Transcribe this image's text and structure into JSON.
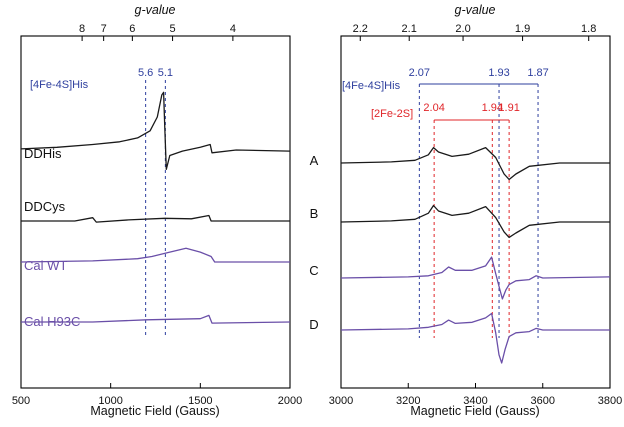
{
  "colors": {
    "black": "#1a1a1a",
    "blue": "#2e3f9e",
    "red": "#e0262a",
    "purple": "#6a4fa8"
  },
  "chart_data": [
    {
      "type": "line",
      "panel": "left",
      "title": "",
      "xlabel": "Magnetic Field (Gauss)",
      "top_axis_label": "g-value",
      "xlim": [
        500,
        2000
      ],
      "xticks": [
        500,
        1000,
        1500,
        2000
      ],
      "g_ticks": [
        {
          "g": 8,
          "label": "8"
        },
        {
          "g": 7,
          "label": "7"
        },
        {
          "g": 6,
          "label": "6"
        },
        {
          "g": 5,
          "label": "5"
        },
        {
          "g": 4,
          "label": "4"
        }
      ],
      "annotation_label": "[4Fe-4S]His",
      "reference_lines": [
        {
          "label": "5.6",
          "field": 1195,
          "color": "blue"
        },
        {
          "label": "5.1",
          "field": 1305,
          "color": "blue"
        }
      ],
      "series": [
        {
          "name": "DDHis",
          "color": "black",
          "baseline": 0.0,
          "points": [
            [
              500,
              -0.02
            ],
            [
              700,
              -0.05
            ],
            [
              900,
              -0.1
            ],
            [
              1050,
              -0.15
            ],
            [
              1150,
              -0.22
            ],
            [
              1220,
              -0.35
            ],
            [
              1260,
              -0.6
            ],
            [
              1285,
              -1.0
            ],
            [
              1295,
              -1.05
            ],
            [
              1302,
              -0.4
            ],
            [
              1310,
              0.35
            ],
            [
              1330,
              0.1
            ],
            [
              1400,
              0.02
            ],
            [
              1500,
              -0.05
            ],
            [
              1555,
              -0.1
            ],
            [
              1565,
              0.05
            ],
            [
              1700,
              0.0
            ],
            [
              2000,
              0.02
            ]
          ]
        },
        {
          "name": "DDCys",
          "color": "black",
          "baseline": 0.0,
          "points": [
            [
              500,
              0.0
            ],
            [
              800,
              0.0
            ],
            [
              900,
              -0.06
            ],
            [
              920,
              0.02
            ],
            [
              1100,
              -0.02
            ],
            [
              1300,
              -0.05
            ],
            [
              1450,
              -0.04
            ],
            [
              1548,
              -0.1
            ],
            [
              1560,
              0.0
            ],
            [
              2000,
              0.0
            ]
          ]
        },
        {
          "name": "Cal WT",
          "color": "purple",
          "baseline": 0.0,
          "points": [
            [
              500,
              0.0
            ],
            [
              900,
              -0.02
            ],
            [
              1150,
              -0.06
            ],
            [
              1230,
              -0.1
            ],
            [
              1330,
              -0.18
            ],
            [
              1420,
              -0.25
            ],
            [
              1500,
              -0.18
            ],
            [
              1560,
              -0.1
            ],
            [
              1580,
              0.0
            ],
            [
              2000,
              0.0
            ]
          ]
        },
        {
          "name": "Cal H93C",
          "color": "purple",
          "baseline": 0.0,
          "points": [
            [
              500,
              0.0
            ],
            [
              900,
              0.0
            ],
            [
              1200,
              -0.04
            ],
            [
              1500,
              -0.06
            ],
            [
              1548,
              -0.12
            ],
            [
              1565,
              0.02
            ],
            [
              2000,
              0.0
            ]
          ]
        }
      ]
    },
    {
      "type": "line",
      "panel": "right",
      "title": "",
      "xlabel": "Magnetic Field (Gauss)",
      "top_axis_label": "g-value",
      "xlim": [
        3000,
        3800
      ],
      "xticks": [
        3000,
        3200,
        3400,
        3600,
        3800
      ],
      "g_ticks": [
        {
          "g": 2.2,
          "label": "2.2"
        },
        {
          "g": 2.1,
          "label": "2.1"
        },
        {
          "g": 2.0,
          "label": "2.0"
        },
        {
          "g": 1.9,
          "label": "1.9"
        },
        {
          "g": 1.8,
          "label": "1.8"
        }
      ],
      "labels": [
        {
          "text": "[4Fe-4S]His",
          "color": "blue"
        },
        {
          "text": "[2Fe-2S]",
          "color": "red"
        }
      ],
      "reference_lines": [
        {
          "label": "2.07",
          "field": 3233,
          "color": "blue"
        },
        {
          "label": "1.93",
          "field": 3470,
          "color": "blue"
        },
        {
          "label": "1.87",
          "field": 3586,
          "color": "blue"
        },
        {
          "label": "2.04",
          "field": 3277,
          "color": "red"
        },
        {
          "label": "1.94",
          "field": 3450,
          "color": "red"
        },
        {
          "label": "1.91",
          "field": 3500,
          "color": "red"
        }
      ],
      "series": [
        {
          "name": "A",
          "color": "black",
          "baseline": 0.0,
          "points": [
            [
              3000,
              0.0
            ],
            [
              3150,
              -0.02
            ],
            [
              3220,
              -0.05
            ],
            [
              3260,
              -0.15
            ],
            [
              3275,
              -0.28
            ],
            [
              3290,
              -0.2
            ],
            [
              3330,
              -0.12
            ],
            [
              3380,
              -0.16
            ],
            [
              3430,
              -0.28
            ],
            [
              3460,
              -0.1
            ],
            [
              3485,
              0.2
            ],
            [
              3500,
              0.3
            ],
            [
              3520,
              0.2
            ],
            [
              3560,
              0.06
            ],
            [
              3650,
              0.0
            ],
            [
              3800,
              0.0
            ]
          ]
        },
        {
          "name": "B",
          "color": "black",
          "baseline": 0.0,
          "points": [
            [
              3000,
              0.0
            ],
            [
              3150,
              -0.02
            ],
            [
              3220,
              -0.05
            ],
            [
              3260,
              -0.16
            ],
            [
              3275,
              -0.3
            ],
            [
              3290,
              -0.2
            ],
            [
              3330,
              -0.12
            ],
            [
              3380,
              -0.16
            ],
            [
              3430,
              -0.28
            ],
            [
              3460,
              -0.08
            ],
            [
              3485,
              0.18
            ],
            [
              3500,
              0.28
            ],
            [
              3520,
              0.2
            ],
            [
              3560,
              0.06
            ],
            [
              3650,
              0.0
            ],
            [
              3800,
              0.0
            ]
          ]
        },
        {
          "name": "C",
          "color": "purple",
          "baseline": 0.0,
          "points": [
            [
              3000,
              0.0
            ],
            [
              3200,
              -0.02
            ],
            [
              3260,
              -0.04
            ],
            [
              3300,
              -0.1
            ],
            [
              3320,
              -0.2
            ],
            [
              3340,
              -0.14
            ],
            [
              3390,
              -0.14
            ],
            [
              3430,
              -0.22
            ],
            [
              3448,
              -0.38
            ],
            [
              3460,
              -0.08
            ],
            [
              3472,
              0.2
            ],
            [
              3480,
              0.38
            ],
            [
              3490,
              0.22
            ],
            [
              3500,
              0.12
            ],
            [
              3520,
              0.05
            ],
            [
              3560,
              0.03
            ],
            [
              3580,
              -0.04
            ],
            [
              3600,
              0.0
            ],
            [
              3800,
              -0.02
            ]
          ]
        },
        {
          "name": "D",
          "color": "purple",
          "baseline": 0.0,
          "points": [
            [
              3000,
              0.0
            ],
            [
              3200,
              -0.02
            ],
            [
              3260,
              -0.05
            ],
            [
              3300,
              -0.1
            ],
            [
              3320,
              -0.18
            ],
            [
              3340,
              -0.12
            ],
            [
              3390,
              -0.14
            ],
            [
              3430,
              -0.22
            ],
            [
              3448,
              -0.3
            ],
            [
              3460,
              0.05
            ],
            [
              3470,
              0.45
            ],
            [
              3478,
              0.6
            ],
            [
              3488,
              0.35
            ],
            [
              3500,
              0.12
            ],
            [
              3520,
              0.05
            ],
            [
              3560,
              0.03
            ],
            [
              3580,
              -0.03
            ],
            [
              3600,
              0.0
            ],
            [
              3800,
              0.0
            ]
          ]
        }
      ]
    }
  ]
}
